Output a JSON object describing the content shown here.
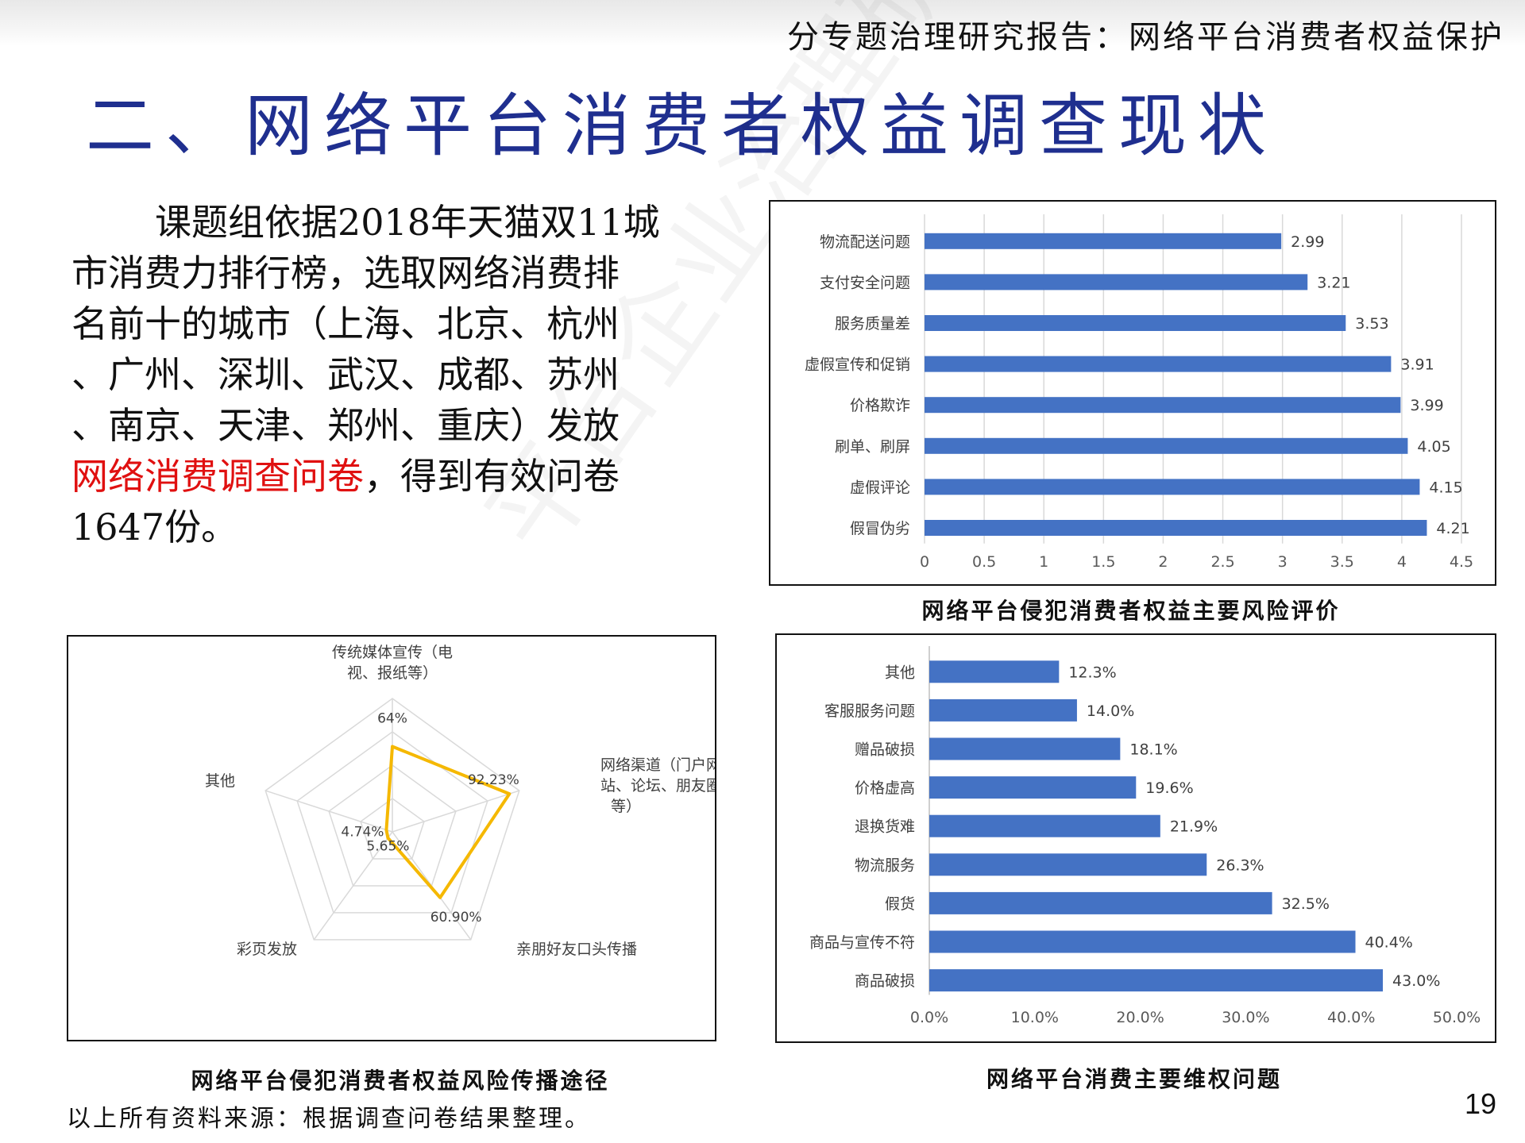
{
  "header": {
    "report_title": "分专题治理研究报告：网络平台消费者权益保护"
  },
  "slide_title": "二、网络平台消费者权益调查现状",
  "intro": {
    "line1": "课题组依据2018年天猫双11城",
    "line2": "市消费力排行榜，选取网络消费排",
    "line3": "名前十的城市（上海、北京、杭州",
    "line4": "、广州、深圳、武汉、成都、苏州",
    "line5": "、南京、天津、郑州、重庆）发放",
    "line6_highlight": "网络消费调查问卷",
    "line6_rest": "，得到有效问卷",
    "line7": "1647份。",
    "highlight_color": "#e01010"
  },
  "watermark_text": "平台企业治理研究",
  "chart_data": [
    {
      "type": "bar",
      "orientation": "horizontal",
      "caption": "网络平台侵犯消费者权益主要风险评价",
      "categories": [
        "物流配送问题",
        "支付安全问题",
        "服务质量差",
        "虚假宣传和促销",
        "价格欺诈",
        "刷单、刷屏",
        "虚假评论",
        "假冒伪劣"
      ],
      "values": [
        2.99,
        3.21,
        3.53,
        3.91,
        3.99,
        4.05,
        4.15,
        4.21
      ],
      "value_labels": [
        "2.99",
        "3.21",
        "3.53",
        "3.91",
        "3.99",
        "4.05",
        "4.15",
        "4.21"
      ],
      "xlim": [
        0,
        4.5
      ],
      "ticks": [
        "0",
        "0.5",
        "1",
        "1.5",
        "2",
        "2.5",
        "3",
        "3.5",
        "4",
        "4.5"
      ],
      "grid": true,
      "bar_color": "#4472c4"
    },
    {
      "type": "radar",
      "caption": "网络平台侵犯消费者权益风险传播途径",
      "axes": [
        "传统媒体宣传（电视、报纸等）",
        "网络渠道（门户网站、论坛、朋友圈等）",
        "亲朋好友口头传播",
        "彩页发放",
        "其他"
      ],
      "axis_label_lines": [
        [
          "传统媒体宣传（电",
          "视、报纸等）"
        ],
        [
          "网络渠道（门户网",
          "站、论坛、朋友圈",
          "等）"
        ],
        [
          "亲朋好友口头传播"
        ],
        [
          "彩页发放"
        ],
        [
          "其他"
        ]
      ],
      "values": [
        64,
        92.23,
        60.9,
        5.65,
        4.74
      ],
      "value_labels": [
        "64%",
        "92.23%",
        "60.90%",
        "5.65%",
        "4.74%"
      ],
      "range": [
        0,
        100
      ],
      "grid": true,
      "line_color": "#f5b800"
    },
    {
      "type": "bar",
      "orientation": "horizontal",
      "caption": "网络平台消费主要维权问题",
      "categories": [
        "其他",
        "客服服务问题",
        "赠品破损",
        "价格虚高",
        "退换货难",
        "物流服务",
        "假货",
        "商品与宣传不符",
        "商品破损"
      ],
      "values": [
        12.3,
        14.0,
        18.1,
        19.6,
        21.9,
        26.3,
        32.5,
        40.4,
        43.0
      ],
      "value_labels": [
        "12.3%",
        "14.0%",
        "18.1%",
        "19.6%",
        "21.9%",
        "26.3%",
        "32.5%",
        "40.4%",
        "43.0%"
      ],
      "xlim": [
        0,
        50
      ],
      "ticks": [
        "0.0%",
        "10.0%",
        "20.0%",
        "30.0%",
        "40.0%",
        "50.0%"
      ],
      "grid": false,
      "bar_color": "#4472c4"
    }
  ],
  "source_note": "以上所有资料来源：根据调查问卷结果整理。",
  "page_number": "19"
}
